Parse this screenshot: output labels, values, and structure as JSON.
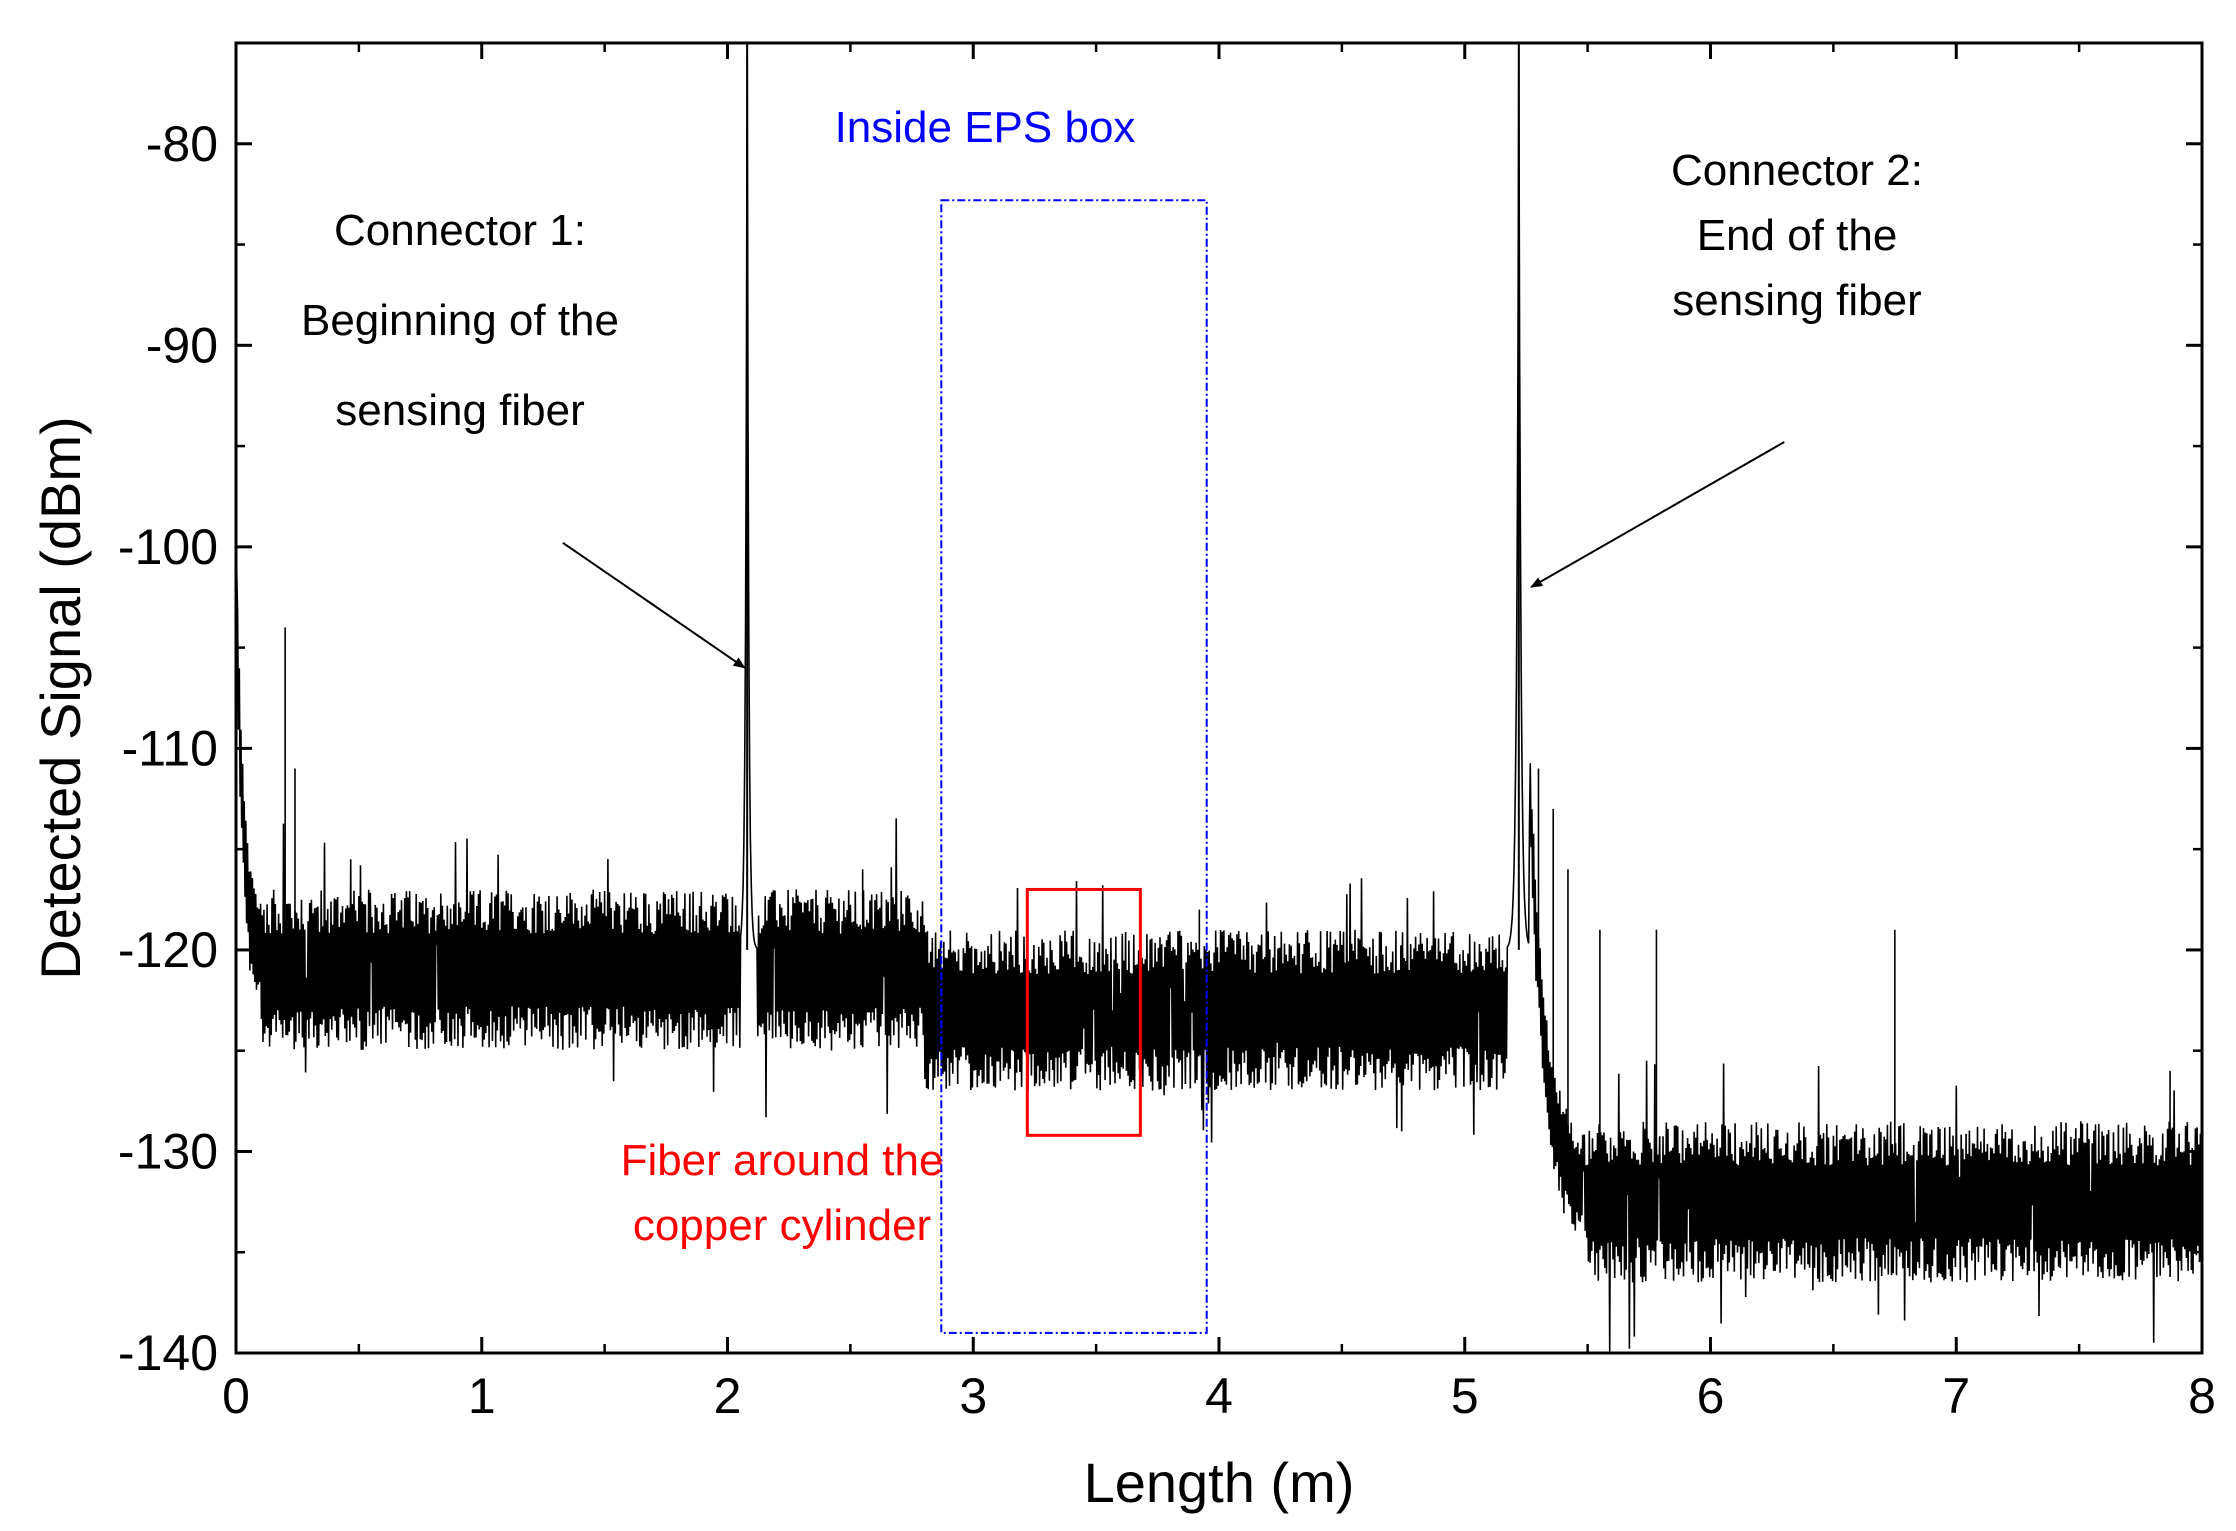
{
  "chart_data": {
    "type": "line",
    "title": "",
    "xlabel": "Length (m)",
    "ylabel": "Detected Signal (dBm)",
    "xlim": [
      0,
      8
    ],
    "ylim": [
      -140,
      -75
    ],
    "xticks": [
      0,
      1,
      2,
      3,
      4,
      5,
      6,
      7,
      8
    ],
    "xtick_labels": [
      "0",
      "1",
      "2",
      "3",
      "4",
      "5",
      "6",
      "7",
      "8"
    ],
    "yticks": [
      -140,
      -130,
      -120,
      -110,
      -100,
      -90,
      -80
    ],
    "ytick_labels": [
      "-140",
      "-130",
      "-120",
      "-110",
      "-100",
      "-90",
      "-80"
    ],
    "grid": false,
    "series": [
      {
        "color": "#000000",
        "baseline_segments": [
          {
            "x_start": 0.0,
            "x_end": 0.1,
            "y_start": -100,
            "y_end": -120
          },
          {
            "x_start": 0.1,
            "x_end": 2.05,
            "y_level": -121
          },
          {
            "x_start": 2.05,
            "x_end": 2.12,
            "peak_x": 2.08,
            "peak_y": -75
          },
          {
            "x_start": 2.12,
            "x_end": 2.8,
            "y_level": -121
          },
          {
            "x_start": 2.8,
            "x_end": 5.17,
            "y_level": -123
          },
          {
            "x_start": 5.17,
            "x_end": 5.26,
            "peak_x": 5.22,
            "peak_y": -75
          },
          {
            "x_start": 5.26,
            "x_end": 5.5,
            "y_start": -110,
            "y_end": -132
          },
          {
            "x_start": 5.5,
            "x_end": 8.0,
            "y_level": -132.5
          }
        ],
        "noise_band_dB": 4,
        "spikes": [
          {
            "x": 0.2,
            "y": -104
          },
          {
            "x": 0.24,
            "y": -111
          },
          {
            "x": 2.5,
            "y": -118
          },
          {
            "x": 2.55,
            "y": -116
          },
          {
            "x": 3.92,
            "y": -118
          },
          {
            "x": 5.3,
            "y": -111
          },
          {
            "x": 5.36,
            "y": -113
          },
          {
            "x": 5.42,
            "y": -116
          },
          {
            "x": 5.55,
            "y": -119
          },
          {
            "x": 5.78,
            "y": -119
          },
          {
            "x": 6.75,
            "y": -119
          },
          {
            "x": 7.87,
            "y": -126
          }
        ]
      }
    ],
    "annotations": [
      {
        "text_lines": [
          "Connector 1:",
          "Beginning of the",
          "sensing fiber"
        ],
        "color": "#000000",
        "arrow_tail": [
          1.33,
          -99.8
        ],
        "arrow_head": [
          2.07,
          -106
        ]
      },
      {
        "text_lines": [
          "Connector 2:",
          "End of the",
          "sensing fiber"
        ],
        "color": "#000000",
        "arrow_tail": [
          6.3,
          -94.8
        ],
        "arrow_head": [
          5.27,
          -102
        ]
      },
      {
        "text_lines": [
          "Inside EPS box"
        ],
        "color": "#0000ff",
        "rect": {
          "x0": 2.87,
          "x1": 3.95,
          "y0": -139,
          "y1": -82.8
        }
      },
      {
        "text_lines": [
          "Fiber around the",
          "copper cylinder"
        ],
        "color": "#ff0000",
        "rect": {
          "x0": 3.22,
          "x1": 3.68,
          "y0": -129.2,
          "y1": -117
        }
      }
    ]
  }
}
